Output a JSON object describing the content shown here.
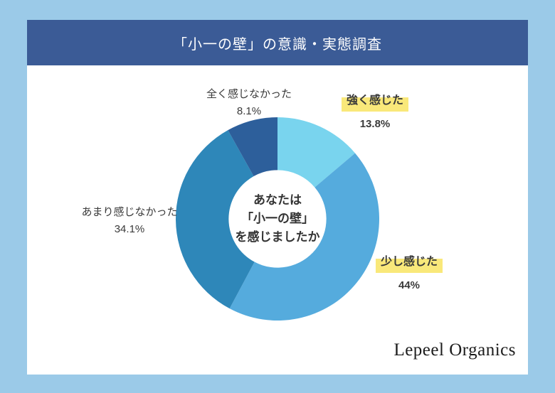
{
  "page": {
    "background_color": "#9bcae8",
    "card_color": "#ffffff"
  },
  "header": {
    "title": "「小一の壁」の意識・実態調査",
    "background_color": "#3b5b96",
    "text_color": "#ffffff"
  },
  "chart_data": {
    "type": "pie",
    "subtype": "donut",
    "title": "「小一の壁」の意識・実態調査",
    "start_angle_deg": 0,
    "direction": "clockwise",
    "inner_radius_ratio": 0.48,
    "center_label_lines": [
      "あなたは",
      "「小一の壁」",
      "を感じましたか"
    ],
    "highlight_color": "#f9e87a",
    "legend_position": "labels-around-chart",
    "segments": [
      {
        "name": "strongly-felt",
        "label": "強く感じた",
        "value_pct": 13.8,
        "display_value": "13.8%",
        "color": "#79d4ee",
        "highlighted": true
      },
      {
        "name": "slightly-felt",
        "label": "少し感じた",
        "value_pct": 44,
        "display_value": "44%",
        "color": "#55abdd",
        "highlighted": true
      },
      {
        "name": "not-much-felt",
        "label": "あまり感じなかった",
        "value_pct": 34.1,
        "display_value": "34.1%",
        "color": "#2e87b9",
        "highlighted": false
      },
      {
        "name": "not-at-all-felt",
        "label": "全く感じなかった",
        "value_pct": 8.1,
        "display_value": "8.1%",
        "color": "#2d5f9b",
        "highlighted": false
      }
    ]
  },
  "footer": {
    "brand": "Lepeel Organics"
  }
}
